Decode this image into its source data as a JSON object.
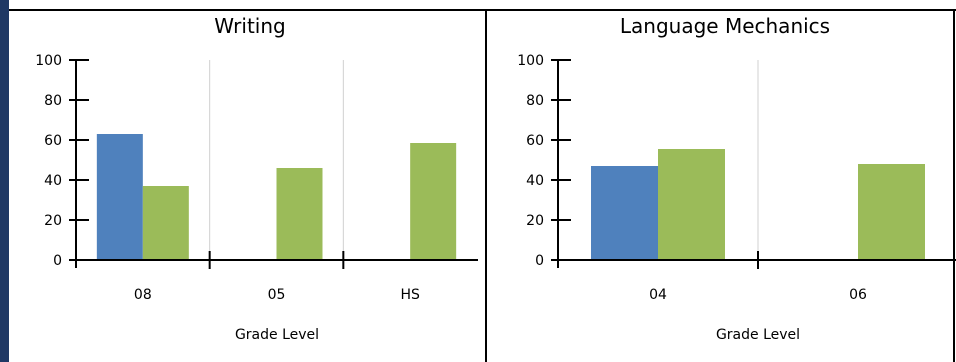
{
  "colors": {
    "frame": "#1f3864",
    "series_a": "#4f81bd",
    "series_b": "#9bbb59",
    "grid": "#d0d0d0"
  },
  "chart_data": [
    {
      "type": "bar",
      "title": "Writing",
      "xlabel": "Grade Level",
      "ylabel": "",
      "ylim": [
        0,
        100
      ],
      "yticks": [
        0,
        20,
        40,
        60,
        80,
        100
      ],
      "categories": [
        "08",
        "05",
        "HS"
      ],
      "series": [
        {
          "values": [
            63,
            null,
            null
          ]
        },
        {
          "values": [
            37,
            46,
            58.5
          ]
        }
      ],
      "grid": true
    },
    {
      "type": "bar",
      "title": "Language Mechanics",
      "xlabel": "Grade Level",
      "ylabel": "",
      "ylim": [
        0,
        100
      ],
      "yticks": [
        0,
        20,
        40,
        60,
        80,
        100
      ],
      "categories": [
        "04",
        "06"
      ],
      "series": [
        {
          "values": [
            47,
            null
          ]
        },
        {
          "values": [
            55.5,
            48
          ]
        }
      ],
      "grid": true
    }
  ]
}
